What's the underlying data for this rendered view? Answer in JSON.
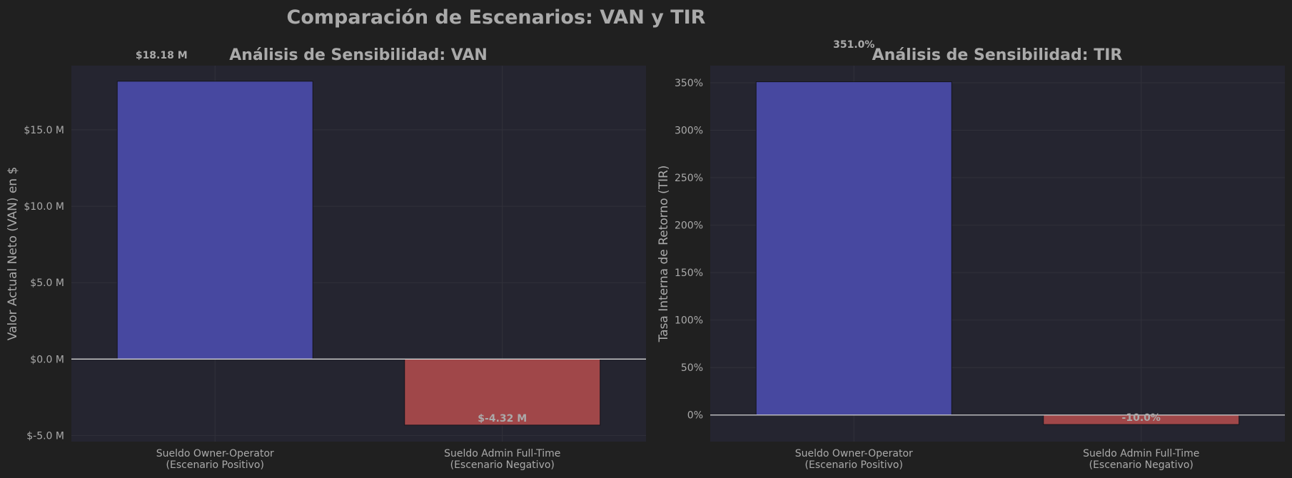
{
  "figure_title": "Comparación de Escenarios: VAN y TIR",
  "colors": {
    "background": "#202020",
    "plot_bg": "#252530",
    "grid": "#31313a",
    "text": "#aaaaaa",
    "positive_bar": "#4748a0",
    "negative_bar": "#a04749",
    "zero_line": "#d6d6d6"
  },
  "chart_data": [
    {
      "type": "bar",
      "title": "Análisis de Sensibilidad: VAN",
      "xlabel": "",
      "ylabel": "Valor Actual Neto (VAN) en $",
      "categories": [
        "Sueldo Owner-Operator\n(Escenario Positivo)",
        "Sueldo Admin Full-Time\n(Escenario Negativo)"
      ],
      "values": [
        18.18,
        -4.32
      ],
      "data_labels": [
        "$18.18 M",
        "$-4.32 M"
      ],
      "ylim": [
        -5.4,
        19.2
      ],
      "yticks": [
        -5,
        0,
        5,
        10,
        15
      ],
      "ytick_labels": [
        "$-5.0 M",
        "$0.0 M",
        "$5.0 M",
        "$10.0 M",
        "$15.0 M"
      ],
      "grid": true
    },
    {
      "type": "bar",
      "title": "Análisis de Sensibilidad: TIR",
      "xlabel": "",
      "ylabel": "Tasa Interna de Retorno (TIR)",
      "categories": [
        "Sueldo Owner-Operator\n(Escenario Positivo)",
        "Sueldo Admin Full-Time\n(Escenario Negativo)"
      ],
      "values": [
        351.0,
        -10.0
      ],
      "data_labels": [
        "351.0%",
        "-10.0%"
      ],
      "ylim": [
        -28,
        368
      ],
      "yticks": [
        0,
        50,
        100,
        150,
        200,
        250,
        300,
        350
      ],
      "ytick_labels": [
        "0%",
        "50%",
        "100%",
        "150%",
        "200%",
        "250%",
        "300%",
        "350%"
      ],
      "grid": true
    }
  ]
}
